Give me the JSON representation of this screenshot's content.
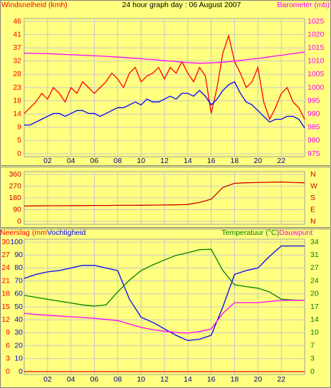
{
  "chart_data": [
    {
      "type": "line",
      "title": "24 hour graph day : 06 August 2007",
      "xlim": [
        0,
        24
      ],
      "xticks": [
        {
          "value": 2,
          "label": "02"
        },
        {
          "value": 4,
          "label": "04"
        },
        {
          "value": 6,
          "label": "06"
        },
        {
          "value": 8,
          "label": "08"
        },
        {
          "value": 10,
          "label": "10"
        },
        {
          "value": 12,
          "label": "12"
        },
        {
          "value": 14,
          "label": "14"
        },
        {
          "value": 16,
          "label": "16"
        },
        {
          "value": 18,
          "label": "18"
        },
        {
          "value": 20,
          "label": "20"
        },
        {
          "value": 22,
          "label": "22"
        }
      ],
      "ylim": [
        0,
        46
      ],
      "yticks": [
        0,
        {
          "value": 4.6,
          "label": "5"
        },
        {
          "value": 9.2,
          "label": "9"
        },
        {
          "value": 13.8,
          "label": "14"
        },
        {
          "value": 18.4,
          "label": "18"
        },
        23,
        {
          "value": 27.6,
          "label": "28"
        },
        {
          "value": 32.2,
          "label": "32"
        },
        {
          "value": 36.8,
          "label": "37"
        },
        {
          "value": 41.4,
          "label": "41"
        },
        46
      ],
      "y2lim": [
        975,
        1025
      ],
      "y2ticks": [
        975,
        980,
        985,
        990,
        995,
        1000,
        1005,
        1010,
        1015,
        1020,
        1025
      ],
      "grid": true,
      "series": [
        {
          "name": "Windsnelheid (kmh)",
          "color": "#ff0000",
          "x": [
            0,
            0.5,
            1,
            1.5,
            2,
            2.5,
            3,
            3.5,
            4,
            4.5,
            5,
            5.5,
            6,
            6.5,
            7,
            7.5,
            8,
            8.5,
            9,
            9.5,
            10,
            10.5,
            11,
            11.5,
            12,
            12.5,
            13,
            13.5,
            14,
            14.5,
            15,
            15.5,
            16,
            16.5,
            17,
            17.5,
            18,
            18.5,
            19,
            19.5,
            20,
            20.5,
            21,
            21.5,
            22,
            22.5,
            23,
            23.5,
            24
          ],
          "values": [
            14,
            16,
            18,
            21,
            19,
            23,
            21,
            18,
            23,
            21,
            25,
            23,
            21,
            23,
            25,
            28,
            26,
            23,
            28,
            30,
            25,
            27,
            28,
            30,
            26,
            30,
            28,
            32,
            28,
            25,
            30,
            27,
            14,
            23,
            35,
            41,
            32,
            28,
            23,
            25,
            30,
            18,
            12,
            16,
            21,
            23,
            18,
            16,
            12
          ]
        },
        {
          "color": "#0000ff",
          "x": [
            0,
            0.5,
            1,
            1.5,
            2,
            2.5,
            3,
            3.5,
            4,
            4.5,
            5,
            5.5,
            6,
            6.5,
            7,
            7.5,
            8,
            8.5,
            9,
            9.5,
            10,
            10.5,
            11,
            11.5,
            12,
            12.5,
            13,
            13.5,
            14,
            14.5,
            15,
            15.5,
            16,
            16.5,
            17,
            17.5,
            18,
            18.5,
            19,
            19.5,
            20,
            20.5,
            21,
            21.5,
            22,
            22.5,
            23,
            23.5,
            24
          ],
          "values": [
            10,
            10,
            11,
            12,
            13,
            14,
            14,
            13,
            14,
            15,
            15,
            14,
            14,
            13,
            14,
            15,
            16,
            16,
            17,
            18,
            17,
            19,
            18,
            18,
            19,
            20,
            19,
            21,
            21,
            20,
            22,
            20,
            17,
            19,
            22,
            24,
            25,
            21,
            18,
            17,
            15,
            13,
            11,
            12,
            12,
            13,
            13,
            12,
            9
          ]
        },
        {
          "name": "Barometer (mb)",
          "color": "#ff00ff",
          "axis": "y2",
          "x": [
            0,
            1,
            2,
            3,
            4,
            5,
            6,
            7,
            8,
            9,
            10,
            11,
            12,
            13,
            14,
            15,
            16,
            17,
            18,
            19,
            20,
            21,
            22,
            23,
            24
          ],
          "values": [
            1013,
            1012.9,
            1012.8,
            1012.6,
            1012.4,
            1012.2,
            1012,
            1011.8,
            1011.5,
            1011.2,
            1010.9,
            1010.6,
            1010.2,
            1009.8,
            1009.4,
            1009.2,
            1009.3,
            1009.6,
            1010,
            1010.5,
            1011,
            1011.6,
            1012.2,
            1012.8,
            1013.4
          ]
        }
      ]
    },
    {
      "type": "line",
      "xlim": [
        0,
        24
      ],
      "xticks": [
        2,
        4,
        6,
        8,
        10,
        12,
        14,
        16,
        18,
        20,
        22
      ],
      "show_xtick_labels": false,
      "ylim": [
        0,
        360
      ],
      "yticks": [
        0,
        90,
        180,
        270,
        360
      ],
      "y2lim": [
        0,
        360
      ],
      "y2ticks": [
        {
          "value": 0,
          "label": "N"
        },
        {
          "value": 90,
          "label": "E"
        },
        {
          "value": 180,
          "label": "S"
        },
        {
          "value": 270,
          "label": "W"
        },
        {
          "value": 360,
          "label": "N"
        }
      ],
      "grid": true,
      "series": [
        {
          "color": "#cc0000",
          "x": [
            0,
            1,
            2,
            3,
            4,
            5,
            6,
            7,
            8,
            9,
            10,
            11,
            12,
            13,
            14,
            15,
            16,
            17,
            18,
            19,
            20,
            21,
            22,
            23,
            24
          ],
          "values": [
            118,
            119,
            120,
            120,
            121,
            121,
            122,
            122,
            123,
            123,
            124,
            125,
            126,
            127,
            130,
            145,
            170,
            260,
            292,
            296,
            298,
            300,
            302,
            298,
            296
          ]
        }
      ]
    },
    {
      "type": "line",
      "xlim": [
        0,
        24
      ],
      "xticks": [
        {
          "value": 2,
          "label": "02"
        },
        {
          "value": 4,
          "label": "04"
        },
        {
          "value": 6,
          "label": "06"
        },
        {
          "value": 8,
          "label": "08"
        },
        {
          "value": 10,
          "label": "10"
        },
        {
          "value": 12,
          "label": "12"
        },
        {
          "value": 14,
          "label": "14"
        },
        {
          "value": 16,
          "label": "16"
        },
        {
          "value": 18,
          "label": "18"
        },
        {
          "value": 20,
          "label": "20"
        },
        {
          "value": 22,
          "label": "22"
        }
      ],
      "ylim": [
        0,
        100
      ],
      "yticks": [
        0,
        10,
        20,
        30,
        40,
        50,
        60,
        70,
        80,
        90,
        100
      ],
      "y2lim": [
        0,
        34
      ],
      "y2ticks": [
        0,
        {
          "value": 3.4,
          "label": "3"
        },
        {
          "value": 6.8,
          "label": "7"
        },
        {
          "value": 10.2,
          "label": "10"
        },
        {
          "value": 13.6,
          "label": "14"
        },
        17,
        {
          "value": 20.4,
          "label": "20"
        },
        {
          "value": 23.8,
          "label": "24"
        },
        {
          "value": 27.2,
          "label": "27"
        },
        {
          "value": 30.6,
          "label": "31"
        },
        34
      ],
      "y3lim": [
        0,
        30
      ],
      "y3ticks": [
        0,
        3,
        6,
        9,
        12,
        15,
        18,
        21,
        24,
        27,
        30
      ],
      "grid": true,
      "series": [
        {
          "name": "Vochtigheid",
          "color": "#0000ff",
          "x": [
            0,
            1,
            2,
            3,
            4,
            5,
            6,
            7,
            8,
            9,
            10,
            11,
            12,
            13,
            14,
            15,
            16,
            17,
            18,
            19,
            20,
            21,
            22,
            23,
            24
          ],
          "values": [
            72,
            75,
            77,
            78,
            80,
            82,
            82,
            80,
            78,
            56,
            42,
            38,
            33,
            28,
            24,
            25,
            28,
            50,
            75,
            78,
            80,
            89,
            97,
            97,
            97
          ]
        },
        {
          "name": "Temperatuur (°C)",
          "color": "#008000",
          "axis": "y2",
          "x": [
            0,
            1,
            2,
            3,
            4,
            5,
            6,
            7,
            8,
            9,
            10,
            11,
            12,
            13,
            14,
            15,
            16,
            17,
            18,
            19,
            20,
            21,
            22,
            23,
            24
          ],
          "values": [
            20,
            19.5,
            19,
            18.5,
            18,
            17.5,
            17.2,
            17.5,
            20.9,
            24,
            26.5,
            28,
            29.3,
            30.5,
            31.2,
            32,
            32.1,
            26.5,
            22.8,
            22.3,
            21.9,
            20.9,
            19,
            18.8,
            18.7
          ]
        },
        {
          "name": "Dauwpunt",
          "color": "#ff00ff",
          "axis": "y2",
          "x": [
            0,
            1,
            2,
            3,
            4,
            5,
            6,
            7,
            8,
            9,
            10,
            11,
            12,
            13,
            14,
            15,
            16,
            17,
            18,
            19,
            20,
            21,
            22,
            23,
            24
          ],
          "values": [
            15.3,
            15,
            14.8,
            14.6,
            14.4,
            14.2,
            14,
            13.7,
            13.4,
            12.5,
            11.6,
            11,
            10.6,
            10.3,
            10.1,
            10.5,
            11.2,
            15.3,
            18.1,
            18.1,
            18.1,
            18.4,
            18.7,
            18.7,
            18.7
          ]
        },
        {
          "name": "Neerslag (mm",
          "color": "#ff0000",
          "axis": "y3",
          "x": [
            0,
            1,
            2,
            3,
            4,
            5,
            6,
            7,
            8,
            9,
            10,
            11,
            12,
            13,
            14,
            15,
            16,
            17,
            18,
            19,
            20,
            21,
            22,
            23,
            24
          ],
          "values": [
            0,
            0,
            0,
            0,
            0,
            0,
            0,
            0,
            0,
            0,
            0,
            0,
            0,
            0,
            0,
            0,
            0,
            0,
            0,
            0,
            0,
            0,
            0,
            0,
            0
          ]
        }
      ]
    }
  ]
}
